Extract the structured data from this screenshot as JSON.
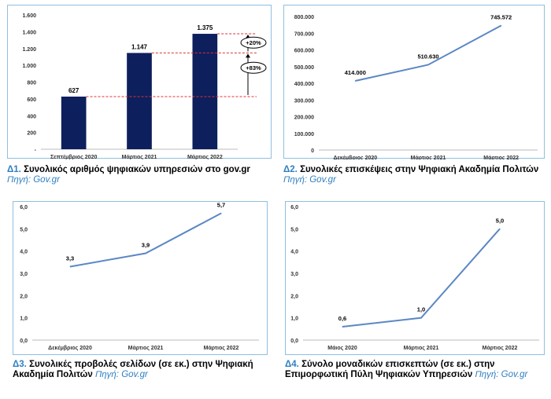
{
  "colors": {
    "bar": "#0d1f5c",
    "line": "#5b87c5",
    "ref": "#e03030",
    "caption_accent": "#2f7fc1",
    "panel_border": "#8fbfe0"
  },
  "captions": [
    {
      "num": "Δ1.",
      "text": "Συνολικός αριθμός ψηφιακών υπηρεσιών στο gov.gr",
      "src": "Πηγή: Gov.gr"
    },
    {
      "num": "Δ2.",
      "text": "Συνολικές επισκέψεις στην Ψηφιακή Ακαδημία Πολιτών",
      "src": "Πηγή: Gov.gr"
    },
    {
      "num": "Δ3.",
      "text": "Συνολικές προβολές σελίδων (σε εκ.) στην Ψηφιακή Ακαδημία Πολιτών",
      "src": "Πηγή: Gov.gr"
    },
    {
      "num": "Δ4.",
      "text": "Σύνολο μοναδικών επισκεπτών (σε εκ.) στην Επιμορφωτική Πύλη Ψηφιακών Υπηρεσιών",
      "src": "Πηγή: Gov.gr"
    }
  ],
  "chart_data": [
    {
      "type": "bar",
      "categories": [
        "Σεπτέμβριος 2020",
        "Μάρτιος 2021",
        "Μάρτιος 2022"
      ],
      "values": [
        627,
        1147,
        1375
      ],
      "data_labels": [
        "627",
        "1.147",
        "1.375"
      ],
      "yticks": [
        "-",
        "200",
        "400",
        "600",
        "800",
        "1.000",
        "1.200",
        "1.400",
        "1.600"
      ],
      "ylim": [
        0,
        1600
      ],
      "annotations": [
        "+20%",
        "+83%"
      ]
    },
    {
      "type": "line",
      "categories": [
        "Δεκέμβριος 2020",
        "Μάρτιος 2021",
        "Μάρτιος 2022"
      ],
      "values": [
        414000,
        510630,
        745572
      ],
      "data_labels": [
        "414.000",
        "510.630",
        "745.572"
      ],
      "yticks": [
        "0",
        "100.000",
        "200.000",
        "300.000",
        "400.000",
        "500.000",
        "600.000",
        "700.000",
        "800.000"
      ],
      "ylim": [
        0,
        800000
      ]
    },
    {
      "type": "line",
      "categories": [
        "Δεκέμβριος 2020",
        "Μάρτιος 2021",
        "Μάρτιος 2022"
      ],
      "values": [
        3.3,
        3.9,
        5.7
      ],
      "data_labels": [
        "3,3",
        "3,9",
        "5,7"
      ],
      "yticks": [
        "0,0",
        "1,0",
        "2,0",
        "3,0",
        "4,0",
        "5,0",
        "6,0"
      ],
      "ylim": [
        0,
        6
      ]
    },
    {
      "type": "line",
      "categories": [
        "Μάιος 2020",
        "Μάρτιος 2021",
        "Μάρτιος 2022"
      ],
      "values": [
        0.6,
        1.0,
        5.0
      ],
      "data_labels": [
        "0,6",
        "1,0",
        "5,0"
      ],
      "yticks": [
        "0,0",
        "1,0",
        "2,0",
        "3,0",
        "4,0",
        "5,0",
        "6,0"
      ],
      "ylim": [
        0,
        6
      ]
    }
  ]
}
